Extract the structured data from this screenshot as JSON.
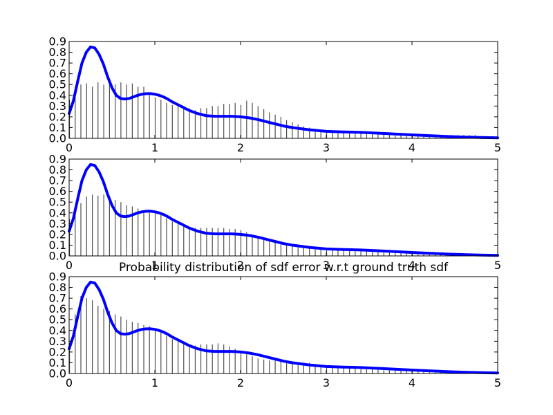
{
  "figure": {
    "title": "Probability distribution of sdf error w.r.t ground truth sdf"
  },
  "chart_data": [
    {
      "type": "bar",
      "title": "",
      "xlabel": "",
      "ylabel": "",
      "xlim": [
        0,
        5
      ],
      "ylim": [
        0,
        0.9
      ],
      "xticks": [
        "0",
        "1",
        "2",
        "3",
        "4",
        "5"
      ],
      "yticks": [
        "0.0",
        "0.1",
        "0.2",
        "0.3",
        "0.4",
        "0.5",
        "0.6",
        "0.7",
        "0.8",
        "0.9"
      ],
      "grid": false,
      "bar_color": "#000000",
      "curve_color": "#0000ff",
      "bins": {
        "x": [
          0.0,
          0.067,
          0.133,
          0.2,
          0.267,
          0.333,
          0.4,
          0.467,
          0.533,
          0.6,
          0.667,
          0.733,
          0.8,
          0.867,
          0.933,
          1.0,
          1.067,
          1.133,
          1.2,
          1.267,
          1.333,
          1.4,
          1.467,
          1.533,
          1.6,
          1.667,
          1.733,
          1.8,
          1.867,
          1.933,
          2.0,
          2.067,
          2.133,
          2.2,
          2.267,
          2.333,
          2.4,
          2.467,
          2.533,
          2.6,
          2.667,
          2.733,
          2.8,
          2.867,
          2.933,
          3.0,
          3.067,
          3.133,
          3.2,
          3.267,
          3.333,
          3.4,
          3.467,
          3.533,
          3.6,
          3.667,
          3.733,
          3.8,
          3.867,
          3.933,
          4.0,
          4.067,
          4.133,
          4.2,
          4.267,
          4.333,
          4.4,
          4.467,
          4.533,
          4.6,
          4.667,
          4.733,
          4.8,
          4.867,
          4.933
        ],
        "values": [
          0.36,
          0.48,
          0.5,
          0.51,
          0.48,
          0.52,
          0.5,
          0.53,
          0.5,
          0.52,
          0.5,
          0.51,
          0.48,
          0.48,
          0.4,
          0.38,
          0.36,
          0.33,
          0.31,
          0.3,
          0.3,
          0.28,
          0.26,
          0.28,
          0.28,
          0.3,
          0.3,
          0.32,
          0.32,
          0.33,
          0.31,
          0.35,
          0.33,
          0.3,
          0.27,
          0.24,
          0.22,
          0.2,
          0.17,
          0.15,
          0.13,
          0.11,
          0.1,
          0.09,
          0.08,
          0.07,
          0.07,
          0.06,
          0.06,
          0.06,
          0.06,
          0.06,
          0.06,
          0.05,
          0.05,
          0.05,
          0.05,
          0.05,
          0.05,
          0.04,
          0.04,
          0.04,
          0.04,
          0.03,
          0.03,
          0.03,
          0.03,
          0.03,
          0.03,
          0.03,
          0.03,
          0.03,
          0.02,
          0.02,
          0.02
        ]
      },
      "curve": {
        "x": [
          0,
          0.05,
          0.1,
          0.15,
          0.2,
          0.25,
          0.3,
          0.35,
          0.4,
          0.45,
          0.5,
          0.55,
          0.6,
          0.65,
          0.7,
          0.75,
          0.8,
          0.85,
          0.9,
          0.95,
          1.0,
          1.05,
          1.1,
          1.15,
          1.2,
          1.3,
          1.4,
          1.5,
          1.6,
          1.7,
          1.8,
          1.9,
          2.0,
          2.1,
          2.2,
          2.3,
          2.4,
          2.5,
          2.6,
          2.7,
          2.8,
          2.9,
          3.0,
          3.2,
          3.4,
          3.6,
          3.8,
          4.0,
          4.2,
          4.4,
          4.6,
          4.8,
          5.0
        ],
        "y": [
          0.23,
          0.35,
          0.53,
          0.7,
          0.8,
          0.85,
          0.84,
          0.78,
          0.69,
          0.57,
          0.47,
          0.4,
          0.37,
          0.365,
          0.37,
          0.385,
          0.4,
          0.41,
          0.415,
          0.415,
          0.41,
          0.4,
          0.385,
          0.365,
          0.34,
          0.3,
          0.26,
          0.23,
          0.21,
          0.205,
          0.205,
          0.205,
          0.2,
          0.19,
          0.175,
          0.155,
          0.135,
          0.115,
          0.1,
          0.09,
          0.08,
          0.072,
          0.065,
          0.06,
          0.055,
          0.048,
          0.04,
          0.032,
          0.025,
          0.018,
          0.012,
          0.008,
          0.005
        ]
      }
    },
    {
      "type": "bar",
      "title": "",
      "xlabel": "",
      "ylabel": "",
      "xlim": [
        0,
        5
      ],
      "ylim": [
        0,
        0.9
      ],
      "xticks": [
        "0",
        "1",
        "2",
        "3",
        "4",
        "5"
      ],
      "yticks": [
        "0.0",
        "0.1",
        "0.2",
        "0.3",
        "0.4",
        "0.5",
        "0.6",
        "0.7",
        "0.8",
        "0.9"
      ],
      "grid": false,
      "bar_color": "#000000",
      "curve_color": "#0000ff",
      "bins": {
        "x": [
          0.0,
          0.067,
          0.133,
          0.2,
          0.267,
          0.333,
          0.4,
          0.467,
          0.533,
          0.6,
          0.667,
          0.733,
          0.8,
          0.867,
          0.933,
          1.0,
          1.067,
          1.133,
          1.2,
          1.267,
          1.333,
          1.4,
          1.467,
          1.533,
          1.6,
          1.667,
          1.733,
          1.8,
          1.867,
          1.933,
          2.0,
          2.067,
          2.133,
          2.2,
          2.267,
          2.333,
          2.4,
          2.467,
          2.533,
          2.6,
          2.667,
          2.733,
          2.8,
          2.867,
          2.933,
          3.0,
          3.067,
          3.133,
          3.2,
          3.267,
          3.333,
          3.4,
          3.467,
          3.533,
          3.6,
          3.667,
          3.733,
          3.8,
          3.867,
          3.933,
          4.0,
          4.067,
          4.133,
          4.2,
          4.267,
          4.333,
          4.4,
          4.467,
          4.533,
          4.6,
          4.667,
          4.733,
          4.8,
          4.867,
          4.933
        ],
        "values": [
          0.34,
          0.45,
          0.49,
          0.55,
          0.57,
          0.56,
          0.57,
          0.55,
          0.52,
          0.5,
          0.47,
          0.46,
          0.44,
          0.42,
          0.4,
          0.4,
          0.38,
          0.35,
          0.32,
          0.3,
          0.28,
          0.27,
          0.26,
          0.26,
          0.26,
          0.26,
          0.26,
          0.26,
          0.25,
          0.25,
          0.24,
          0.22,
          0.2,
          0.18,
          0.16,
          0.14,
          0.13,
          0.12,
          0.11,
          0.1,
          0.09,
          0.09,
          0.08,
          0.08,
          0.07,
          0.07,
          0.06,
          0.06,
          0.06,
          0.05,
          0.05,
          0.05,
          0.05,
          0.04,
          0.04,
          0.04,
          0.04,
          0.03,
          0.03,
          0.03,
          0.03,
          0.03,
          0.02,
          0.02,
          0.02,
          0.02,
          0.02,
          0.02,
          0.02,
          0.01,
          0.01,
          0.01,
          0.01,
          0.01,
          0.01
        ]
      },
      "curve": {
        "x": [
          0,
          0.05,
          0.1,
          0.15,
          0.2,
          0.25,
          0.3,
          0.35,
          0.4,
          0.45,
          0.5,
          0.55,
          0.6,
          0.65,
          0.7,
          0.75,
          0.8,
          0.85,
          0.9,
          0.95,
          1.0,
          1.05,
          1.1,
          1.15,
          1.2,
          1.3,
          1.4,
          1.5,
          1.6,
          1.7,
          1.8,
          1.9,
          2.0,
          2.1,
          2.2,
          2.3,
          2.4,
          2.5,
          2.6,
          2.7,
          2.8,
          2.9,
          3.0,
          3.2,
          3.4,
          3.6,
          3.8,
          4.0,
          4.2,
          4.4,
          4.6,
          4.8,
          5.0
        ],
        "y": [
          0.23,
          0.35,
          0.53,
          0.7,
          0.8,
          0.85,
          0.84,
          0.78,
          0.69,
          0.57,
          0.47,
          0.4,
          0.37,
          0.365,
          0.37,
          0.385,
          0.4,
          0.41,
          0.415,
          0.415,
          0.41,
          0.4,
          0.385,
          0.365,
          0.34,
          0.3,
          0.26,
          0.23,
          0.21,
          0.205,
          0.205,
          0.205,
          0.2,
          0.19,
          0.175,
          0.155,
          0.135,
          0.115,
          0.1,
          0.09,
          0.08,
          0.072,
          0.065,
          0.06,
          0.055,
          0.048,
          0.04,
          0.032,
          0.025,
          0.018,
          0.012,
          0.008,
          0.005
        ]
      }
    },
    {
      "type": "bar",
      "title": "",
      "xlabel": "",
      "ylabel": "",
      "xlim": [
        0,
        5
      ],
      "ylim": [
        0,
        0.9
      ],
      "xticks": [
        "0",
        "1",
        "2",
        "3",
        "4",
        "5"
      ],
      "yticks": [
        "0.0",
        "0.1",
        "0.2",
        "0.3",
        "0.4",
        "0.5",
        "0.6",
        "0.7",
        "0.8",
        "0.9"
      ],
      "grid": false,
      "bar_color": "#000000",
      "curve_color": "#0000ff",
      "bins": {
        "x": [
          0.0,
          0.067,
          0.133,
          0.2,
          0.267,
          0.333,
          0.4,
          0.467,
          0.533,
          0.6,
          0.667,
          0.733,
          0.8,
          0.867,
          0.933,
          1.0,
          1.067,
          1.133,
          1.2,
          1.267,
          1.333,
          1.4,
          1.467,
          1.533,
          1.6,
          1.667,
          1.733,
          1.8,
          1.867,
          1.933,
          2.0,
          2.067,
          2.133,
          2.2,
          2.267,
          2.333,
          2.4,
          2.467,
          2.533,
          2.6,
          2.667,
          2.733,
          2.8,
          2.867,
          2.933,
          3.0,
          3.067,
          3.133,
          3.2,
          3.267,
          3.333,
          3.4,
          3.467,
          3.533,
          3.6,
          3.667,
          3.733,
          3.8,
          3.867,
          3.933,
          4.0,
          4.067,
          4.133,
          4.2,
          4.267,
          4.333,
          4.4,
          4.467,
          4.533,
          4.6,
          4.667,
          4.733,
          4.8,
          4.867,
          4.933
        ],
        "values": [
          0.28,
          0.55,
          0.72,
          0.7,
          0.68,
          0.63,
          0.6,
          0.58,
          0.55,
          0.53,
          0.5,
          0.48,
          0.47,
          0.45,
          0.44,
          0.42,
          0.38,
          0.35,
          0.32,
          0.3,
          0.28,
          0.26,
          0.26,
          0.27,
          0.27,
          0.27,
          0.28,
          0.27,
          0.25,
          0.23,
          0.2,
          0.18,
          0.16,
          0.14,
          0.13,
          0.12,
          0.12,
          0.12,
          0.11,
          0.11,
          0.1,
          0.1,
          0.1,
          0.09,
          0.08,
          0.07,
          0.06,
          0.06,
          0.05,
          0.05,
          0.05,
          0.04,
          0.04,
          0.04,
          0.04,
          0.03,
          0.03,
          0.03,
          0.03,
          0.03,
          0.02,
          0.02,
          0.02,
          0.02,
          0.02,
          0.02,
          0.01,
          0.01,
          0.01,
          0.01,
          0.01,
          0.01,
          0.01,
          0.01,
          0.01
        ]
      },
      "curve": {
        "x": [
          0,
          0.05,
          0.1,
          0.15,
          0.2,
          0.25,
          0.3,
          0.35,
          0.4,
          0.45,
          0.5,
          0.55,
          0.6,
          0.65,
          0.7,
          0.75,
          0.8,
          0.85,
          0.9,
          0.95,
          1.0,
          1.05,
          1.1,
          1.15,
          1.2,
          1.3,
          1.4,
          1.5,
          1.6,
          1.7,
          1.8,
          1.9,
          2.0,
          2.1,
          2.2,
          2.3,
          2.4,
          2.5,
          2.6,
          2.7,
          2.8,
          2.9,
          3.0,
          3.2,
          3.4,
          3.6,
          3.8,
          4.0,
          4.2,
          4.4,
          4.6,
          4.8,
          5.0
        ],
        "y": [
          0.23,
          0.35,
          0.53,
          0.7,
          0.8,
          0.85,
          0.84,
          0.78,
          0.69,
          0.57,
          0.47,
          0.4,
          0.37,
          0.365,
          0.37,
          0.385,
          0.4,
          0.41,
          0.415,
          0.415,
          0.41,
          0.4,
          0.385,
          0.365,
          0.34,
          0.3,
          0.26,
          0.23,
          0.21,
          0.205,
          0.205,
          0.205,
          0.2,
          0.19,
          0.175,
          0.155,
          0.135,
          0.115,
          0.1,
          0.09,
          0.08,
          0.072,
          0.065,
          0.06,
          0.055,
          0.048,
          0.04,
          0.032,
          0.025,
          0.018,
          0.012,
          0.008,
          0.005
        ]
      }
    }
  ]
}
